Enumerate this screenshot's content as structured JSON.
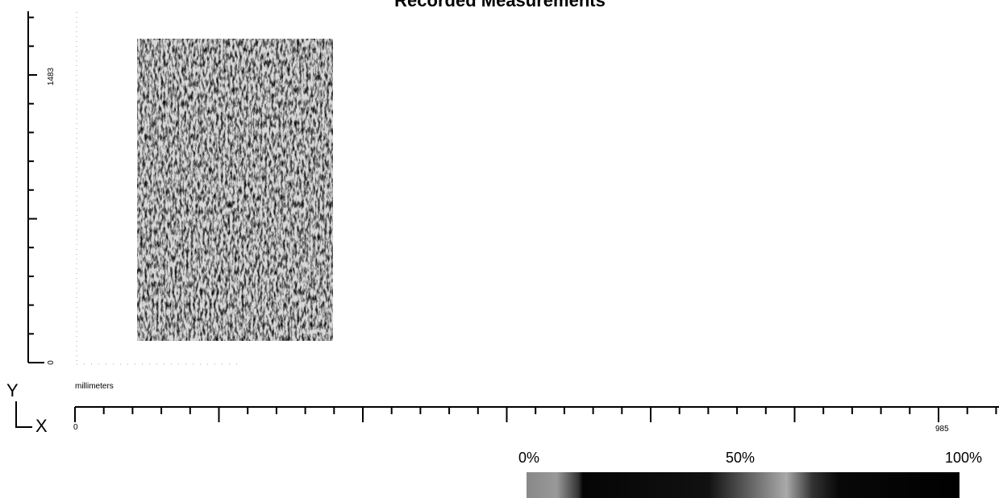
{
  "header": {
    "title": "Recorded Measurements"
  },
  "y_axis": {
    "max_label": "1483",
    "min_label": "0"
  },
  "x_axis": {
    "unit": "millimeters",
    "min_label": "0",
    "max_label": "985"
  },
  "orientation": {
    "y": "Y",
    "x": "X"
  },
  "color_scale": {
    "labels": [
      "0%",
      "50%",
      "100%"
    ]
  }
}
